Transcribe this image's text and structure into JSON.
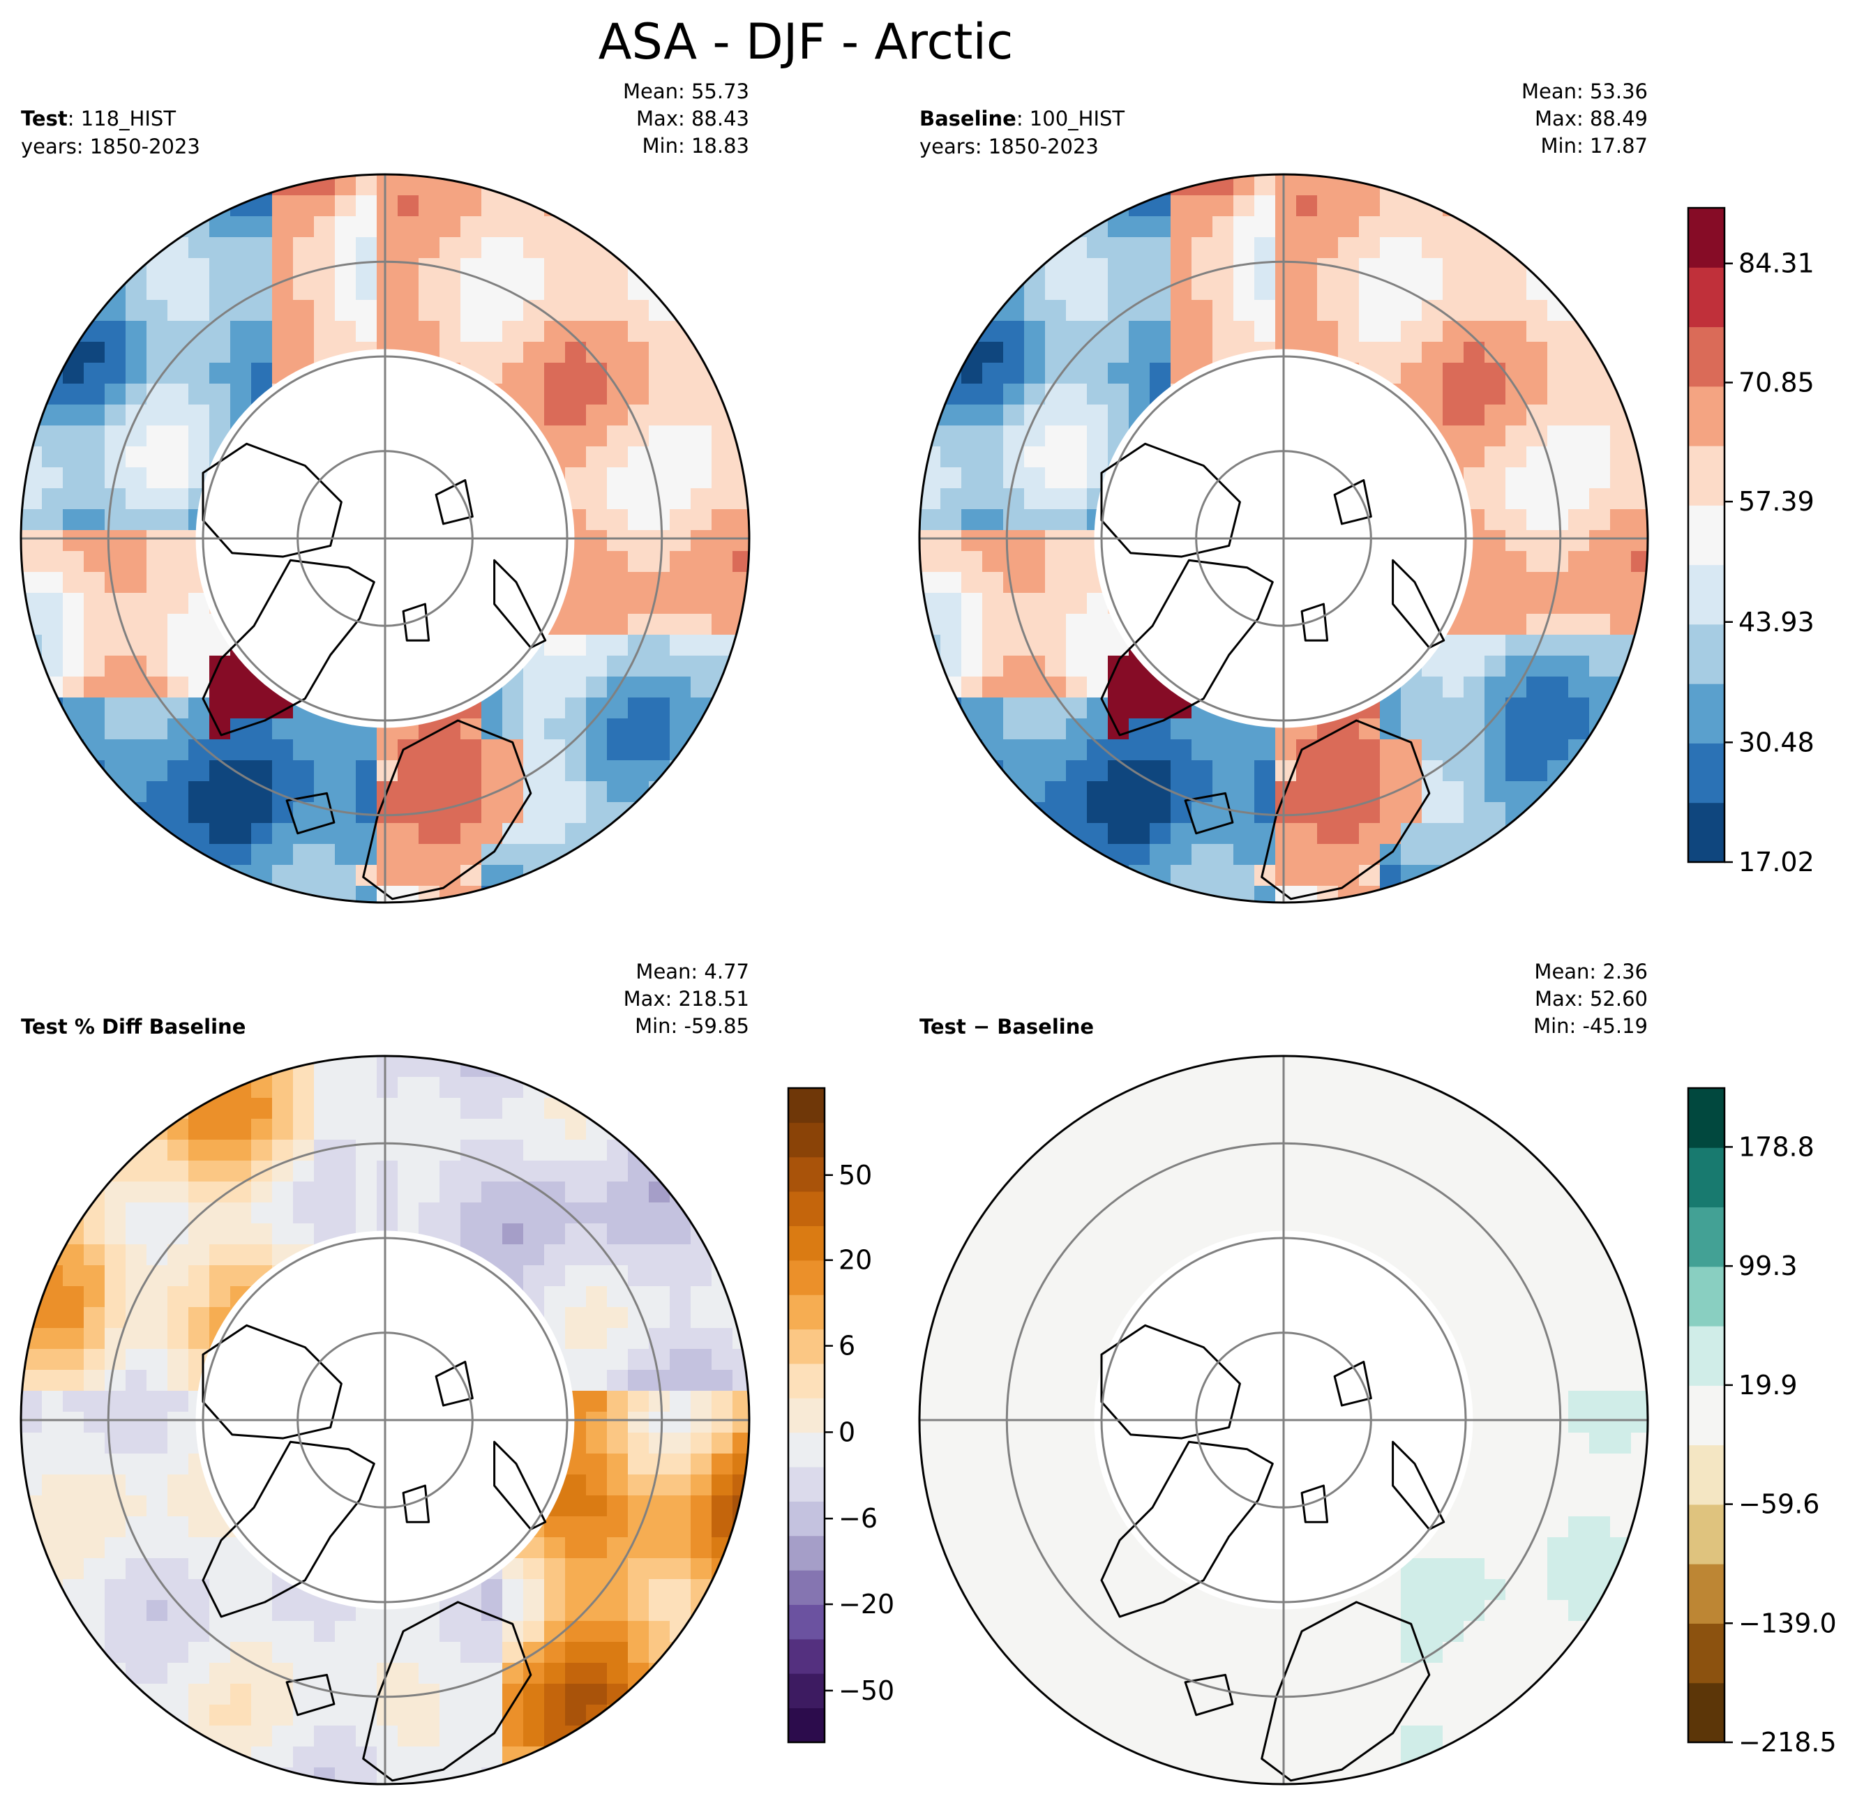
{
  "figure": {
    "title": "ASA - DJF - Arctic"
  },
  "panels": {
    "test": {
      "label_bold": "Test",
      "label_rest": ": 118_HIST",
      "years": "years: 1850-2023",
      "mean": "Mean: 55.73",
      "max": "Max: 88.43",
      "min": "Min: 18.83"
    },
    "baseline": {
      "label_bold": "Baseline",
      "label_rest": ": 100_HIST",
      "years": "years: 1850-2023",
      "mean": "Mean: 53.36",
      "max": "Max: 88.49",
      "min": "Min: 17.87"
    },
    "pct_diff": {
      "label_bold": "Test % Diff Baseline",
      "mean": "Mean:  4.77",
      "max": "Max: 218.51",
      "min": "Min: -59.85"
    },
    "diff": {
      "label_bold": "Test − Baseline",
      "mean": "Mean:  2.36",
      "max": "Max: 52.60",
      "min": "Min: -45.19"
    }
  },
  "chart_data": [
    {
      "type": "heatmap",
      "title": "ASA - DJF - Arctic (Test)",
      "projection": "north polar stereographic",
      "colormap": "RdBu_r",
      "colorbar_shared_with": "Baseline",
      "colorbar_ticks": [
        "84.31",
        "70.85",
        "57.39",
        "43.93",
        "30.48",
        "17.02"
      ],
      "colorbar_range": [
        17.02,
        91.04
      ],
      "colors": [
        "#0f467e",
        "#2b72b5",
        "#5aa0cd",
        "#a6cce3",
        "#d8e8f3",
        "#f6f6f6",
        "#fcdbc8",
        "#f4a482",
        "#da6b58",
        "#c0303a",
        "#860c26"
      ]
    },
    {
      "type": "heatmap",
      "title": "ASA - DJF - Arctic (Baseline)",
      "colorbar_ticks": [
        "84.31",
        "70.85",
        "57.39",
        "43.93",
        "30.48",
        "17.02"
      ]
    },
    {
      "type": "heatmap",
      "title": "Test % Diff Baseline",
      "colormap": "PuOr_r",
      "colorbar_ticks": [
        "50",
        "20",
        "6",
        "0",
        "−6",
        "−20",
        "−50"
      ],
      "colors": [
        "#2c0c4c",
        "#3d1b61",
        "#54307f",
        "#6b52a0",
        "#8575b1",
        "#a59ec8",
        "#c4c2df",
        "#dbdaeb",
        "#eceef1",
        "#f8ead6",
        "#fde0ba",
        "#fbc784",
        "#f6ad52",
        "#eb902a",
        "#da7b13",
        "#c4650c",
        "#a9530a",
        "#8a4307",
        "#6f3708"
      ]
    },
    {
      "type": "heatmap",
      "title": "Test − Baseline",
      "colormap": "BrBG",
      "colorbar_ticks": [
        "178.8",
        "99.3",
        "19.9",
        "−59.6",
        "−139.0",
        "−218.5"
      ],
      "colorbar_range": [
        -218.5,
        218.5
      ],
      "colors": [
        "#5c3608",
        "#8c520f",
        "#bd8634",
        "#dfc37e",
        "#f4e6c3",
        "#f5f5f3",
        "#d0ede8",
        "#89cfc1",
        "#43a195",
        "#187a6f",
        "#01483e"
      ]
    }
  ]
}
